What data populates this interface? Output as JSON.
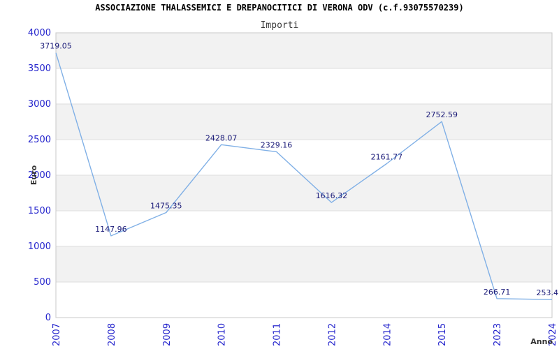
{
  "chart_data": {
    "type": "line",
    "title": "ASSOCIAZIONE THALASSEMICI E DREPANOCITICI DI VERONA ODV (c.f.93075570239)",
    "subtitle": "Importi",
    "xlabel": "Anno",
    "ylabel": "Euro",
    "categories": [
      "2007",
      "2008",
      "2009",
      "2010",
      "2011",
      "2012",
      "2014",
      "2015",
      "2023",
      "2024"
    ],
    "values": [
      3719.05,
      1147.96,
      1475.35,
      2428.07,
      2329.16,
      1616.32,
      2161.77,
      2752.59,
      266.71,
      253.4
    ],
    "point_labels": [
      "3719.05",
      "1147.96",
      "1475.35",
      "2428.07",
      "2329.16",
      "1616.32",
      "2161.77",
      "2752.59",
      "266.71",
      "253.4"
    ],
    "ylim": [
      0,
      4000
    ],
    "ytick_step": 500,
    "grid": true,
    "legend": null,
    "colors": {
      "line": "#80b0e6",
      "axis_tick_label": "#2323cc",
      "point_label": "#1a1a78",
      "plot_band": "#f2f2f2",
      "gridline": "#dddddd",
      "plot_border": "#c8c8c8",
      "axis_title": "#333333",
      "title": "#000000",
      "subtitle": "#3a3a3a",
      "background": "#ffffff"
    }
  }
}
